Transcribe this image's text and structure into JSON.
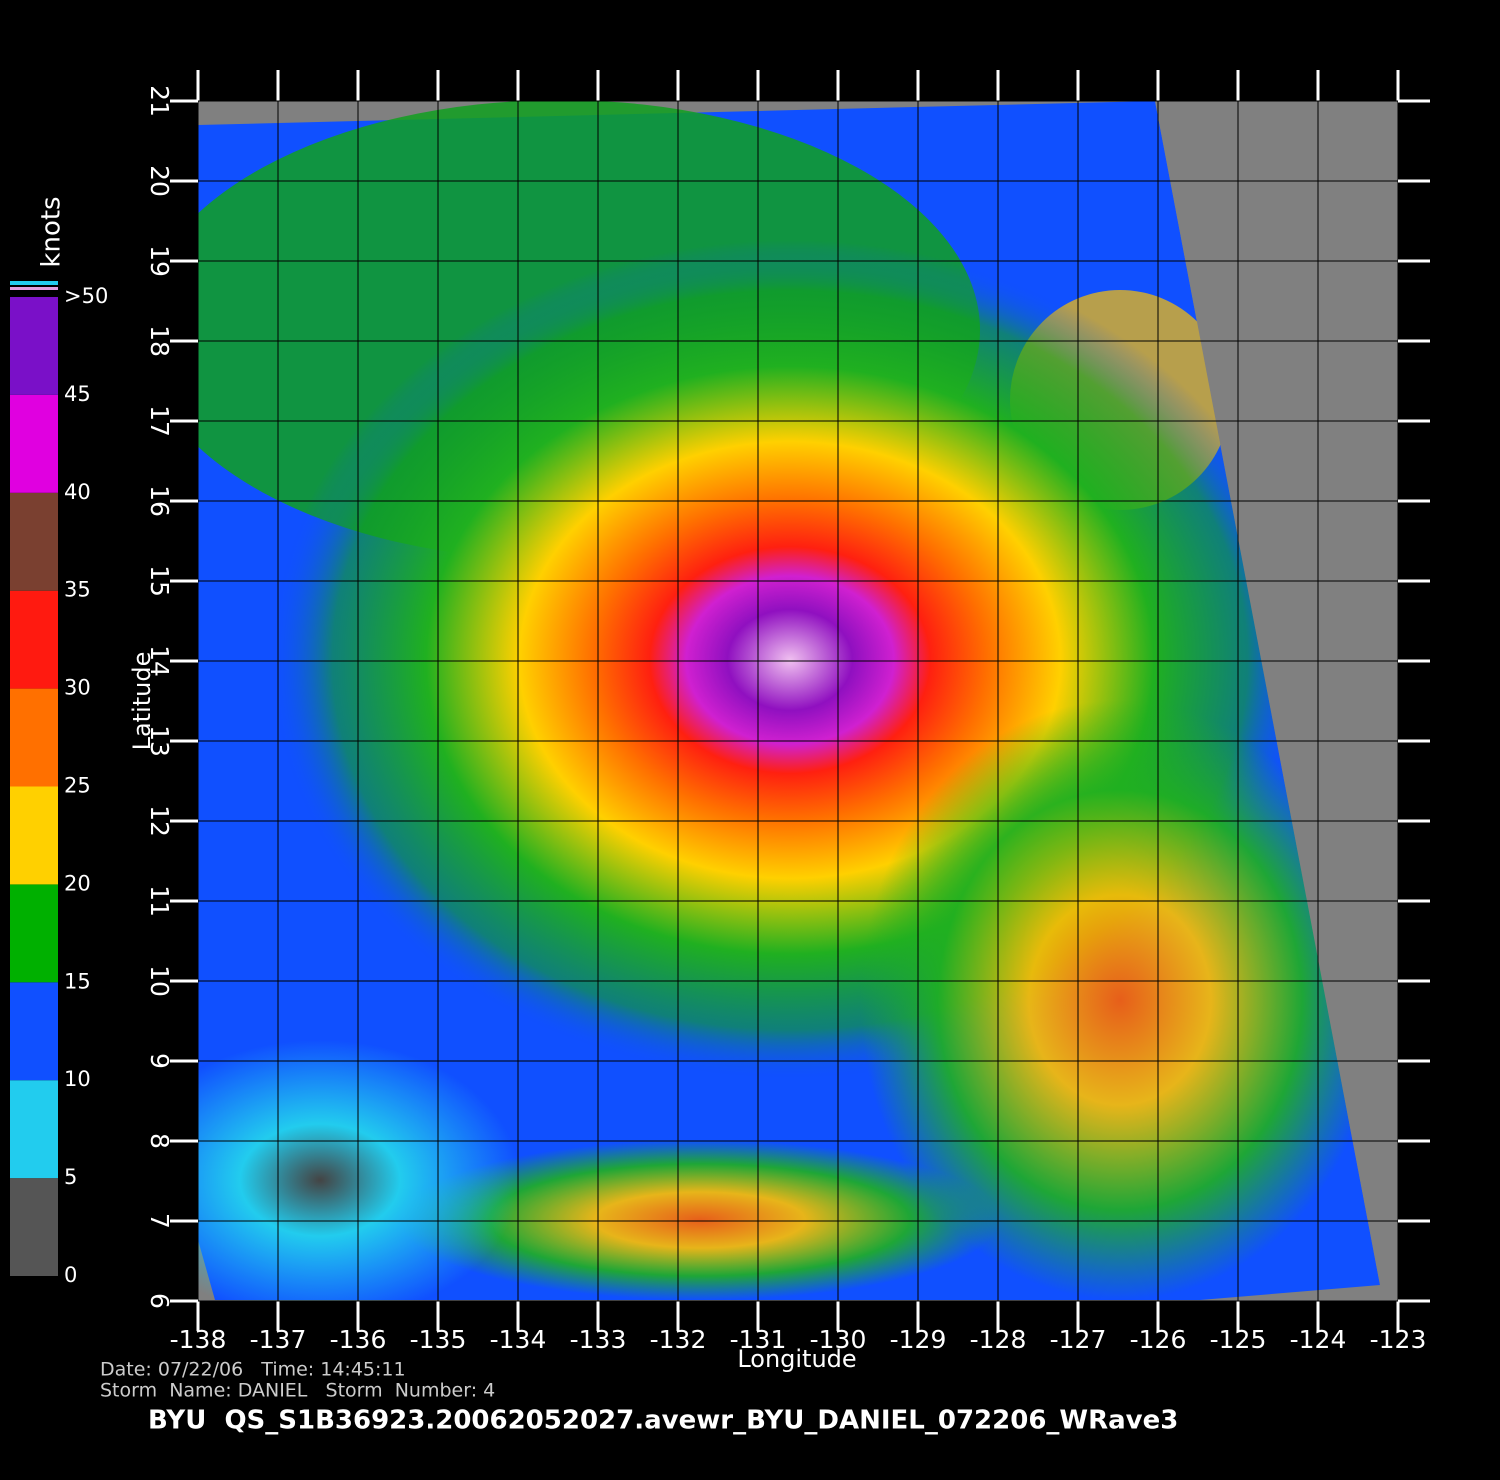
{
  "chart_data": {
    "type": "heatmap",
    "title": "BYU  QS_S1B36923.20062052027.avewr_BYU_DANIEL_072206_WRave3",
    "date_line": "Date: 07/22/06   Time: 14:45:11",
    "storm_line": "Storm  Name: DANIEL   Storm  Number: 4",
    "x_label": "Longitude",
    "y_label": "Latitude",
    "xlim": [
      -138,
      -123
    ],
    "ylim": [
      6,
      21
    ],
    "xticks": [
      -138,
      -137,
      -136,
      -135,
      -134,
      -133,
      -132,
      -131,
      -130,
      -129,
      -128,
      -127,
      -126,
      -125,
      -124,
      -123
    ],
    "yticks": [
      6,
      7,
      8,
      9,
      10,
      11,
      12,
      13,
      14,
      15,
      16,
      17,
      18,
      19,
      20,
      21
    ],
    "grid": true,
    "colorbar": {
      "label": "knots",
      "lim": [
        0,
        50
      ],
      "ticks": [
        0,
        5,
        10,
        15,
        20,
        25,
        30,
        35,
        40,
        45,
        {
          "value": 50,
          "label": ">50"
        }
      ],
      "colors": [
        "#555555",
        "#22ccee",
        "#1050ff",
        "#00b000",
        "#ffd000",
        "#ff7000",
        "#ff1a10",
        "#7a4030",
        "#e000e0",
        "#7a10c8"
      ]
    }
  }
}
